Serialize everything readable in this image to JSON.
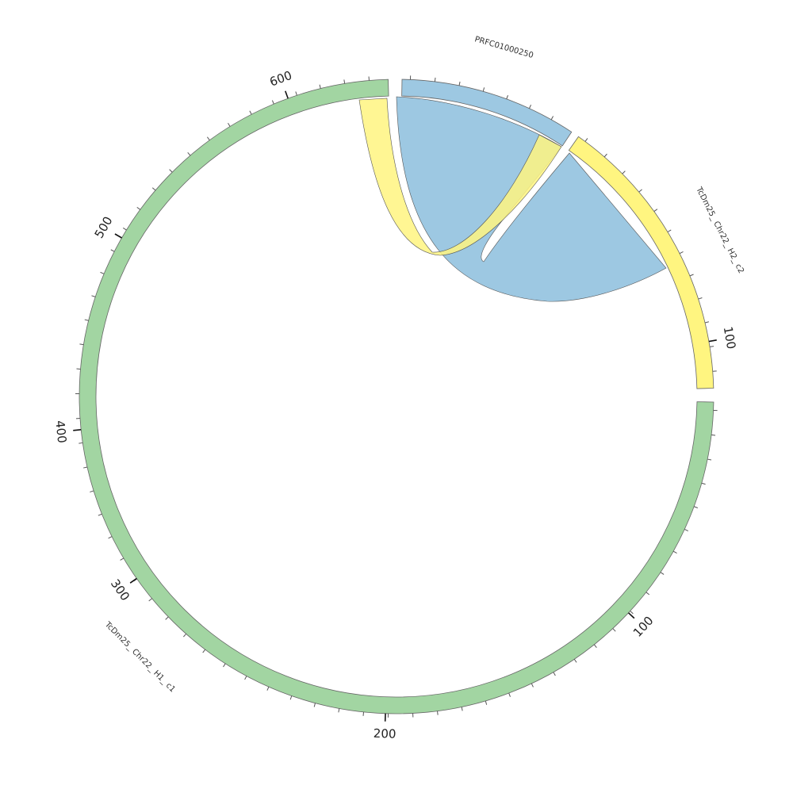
{
  "chart_data": {
    "type": "circos",
    "segments": [
      {
        "id": "c1",
        "label": "TcDm25_ Chr22_ H1_ c1",
        "color": "#a2d5a2",
        "start_deg": 91,
        "end_deg": 359,
        "ticks_at_deg": [
          91,
          153,
          212,
          268,
          331
        ],
        "tick_labels": [
          "100",
          "200",
          "300",
          "400",
          "500"
        ]
      },
      {
        "id": "c2",
        "label": "TcDm25_ Chr22_ H2_ c2",
        "color": "#fff580",
        "start_deg": 90,
        "end_deg": 414.5,
        "ticks_at_deg": [],
        "tick_labels": []
      },
      {
        "id": "prfc",
        "label": "PRFC01000250",
        "color": "#9dc8e2",
        "start_deg": 0,
        "end_deg": 0,
        "ticks_at_deg": [],
        "tick_labels": []
      }
    ],
    "ticks": [
      {
        "deg": 80,
        "label": "100",
        "major": true
      },
      {
        "deg": 133,
        "label": "100",
        "major": true
      },
      {
        "deg": 182,
        "label": "200",
        "major": true
      },
      {
        "deg": 235,
        "label": "300",
        "major": true
      },
      {
        "deg": 264,
        "label": "400",
        "major": true
      },
      {
        "deg": 300,
        "label": "500",
        "major": true
      },
      {
        "deg": 340,
        "label": "600",
        "major": true
      }
    ],
    "links": [
      {
        "from": "prfc",
        "to": "c2",
        "color": "#9dc8e2"
      },
      {
        "from": "c1",
        "to": "c2",
        "color": "#fff580"
      }
    ]
  }
}
